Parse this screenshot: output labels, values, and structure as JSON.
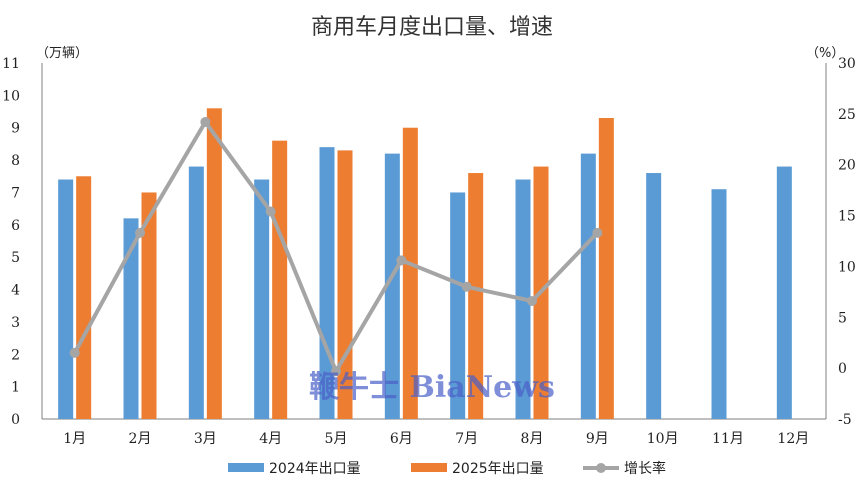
{
  "chart_data": {
    "type": "bar",
    "title": "商用车月度出口量、增速",
    "y_unit_left": "（万辆）",
    "y_unit_right": "（%）",
    "categories": [
      "1月",
      "2月",
      "3月",
      "4月",
      "5月",
      "6月",
      "7月",
      "8月",
      "9月",
      "10月",
      "11月",
      "12月"
    ],
    "y_left_ticks": [
      "0",
      "1",
      "2",
      "3",
      "4",
      "5",
      "6",
      "7",
      "8",
      "9",
      "10",
      "11"
    ],
    "y_right_ticks": [
      "-5",
      "0",
      "5",
      "10",
      "15",
      "20",
      "25",
      "30"
    ],
    "ylim_left": [
      0,
      11
    ],
    "ylim_right": [
      -5,
      30
    ],
    "series": [
      {
        "name": "2024年出口量",
        "type": "bar",
        "axis": "left",
        "color": "#5B9BD5",
        "values": [
          7.4,
          6.2,
          7.8,
          7.4,
          8.4,
          8.2,
          7.0,
          7.4,
          8.2,
          7.6,
          7.1,
          7.8
        ]
      },
      {
        "name": "2025年出口量",
        "type": "bar",
        "axis": "left",
        "color": "#ED7D31",
        "values": [
          7.5,
          7.0,
          9.6,
          8.6,
          8.3,
          9.0,
          7.6,
          7.8,
          9.3,
          null,
          null,
          null
        ]
      },
      {
        "name": "增长率",
        "type": "line",
        "axis": "right",
        "color": "#A5A5A5",
        "values": [
          1.5,
          13.3,
          24.2,
          15.4,
          -0.3,
          10.6,
          8.0,
          6.6,
          13.3,
          null,
          null,
          null
        ]
      }
    ],
    "grid": false,
    "legend": "bottom"
  },
  "watermark": "鞭牛士 BiaNews"
}
